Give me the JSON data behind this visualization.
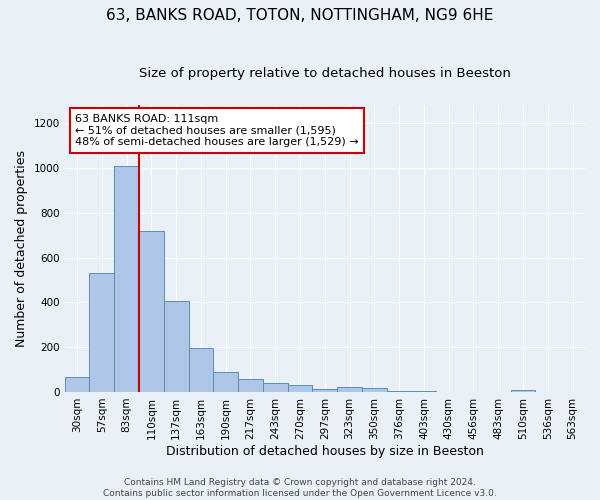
{
  "title": "63, BANKS ROAD, TOTON, NOTTINGHAM, NG9 6HE",
  "subtitle": "Size of property relative to detached houses in Beeston",
  "xlabel": "Distribution of detached houses by size in Beeston",
  "ylabel": "Number of detached properties",
  "categories": [
    "30sqm",
    "57sqm",
    "83sqm",
    "110sqm",
    "137sqm",
    "163sqm",
    "190sqm",
    "217sqm",
    "243sqm",
    "270sqm",
    "297sqm",
    "323sqm",
    "350sqm",
    "376sqm",
    "403sqm",
    "430sqm",
    "456sqm",
    "483sqm",
    "510sqm",
    "536sqm",
    "563sqm"
  ],
  "values": [
    65,
    530,
    1010,
    720,
    408,
    198,
    90,
    60,
    40,
    33,
    15,
    20,
    18,
    5,
    3,
    2,
    2,
    2,
    10,
    2,
    2
  ],
  "bar_color": "#aec6e8",
  "bar_edge_color": "#5b8db8",
  "background_color": "#eaf0f8",
  "grid_color": "#ffffff",
  "ref_line_color": "#cc0000",
  "annotation_text": "63 BANKS ROAD: 111sqm\n← 51% of detached houses are smaller (1,595)\n48% of semi-detached houses are larger (1,529) →",
  "annotation_box_color": "#ffffff",
  "annotation_box_edge_color": "#cc0000",
  "footer_text": "Contains HM Land Registry data © Crown copyright and database right 2024.\nContains public sector information licensed under the Open Government Licence v3.0.",
  "ylim": [
    0,
    1280
  ],
  "title_fontsize": 11,
  "subtitle_fontsize": 9.5,
  "xlabel_fontsize": 9,
  "ylabel_fontsize": 9,
  "tick_fontsize": 7.5,
  "footer_fontsize": 6.5
}
